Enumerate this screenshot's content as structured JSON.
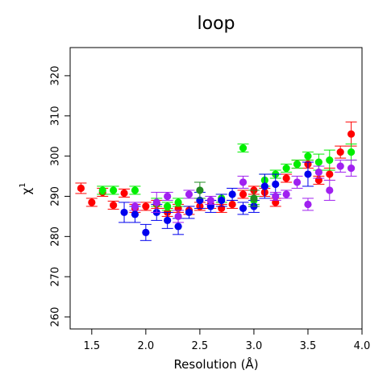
{
  "chart_data": {
    "type": "scatter",
    "title": "loop",
    "xlabel": "Resolution (Å)",
    "ylabel": "χ",
    "ylabel_superscript": "1",
    "xlim": [
      1.3,
      4.0
    ],
    "ylim": [
      257,
      327
    ],
    "xticks": [
      1.5,
      2.0,
      2.5,
      3.0,
      3.5,
      4.0
    ],
    "xtick_labels": [
      "1.5",
      "2.0",
      "2.5",
      "3.0",
      "3.5",
      "4.0"
    ],
    "yticks": [
      260,
      270,
      280,
      290,
      300,
      310,
      320
    ],
    "ytick_labels": [
      "260",
      "270",
      "280",
      "290",
      "300",
      "310",
      "320"
    ],
    "grid": false,
    "series": [
      {
        "color": "#ff0000",
        "points": [
          {
            "x": 1.4,
            "y": 292.0,
            "err": 1.3
          },
          {
            "x": 1.5,
            "y": 288.5,
            "err": 1.0
          },
          {
            "x": 1.6,
            "y": 291.0,
            "err": 1.0
          },
          {
            "x": 1.7,
            "y": 287.8,
            "err": 1.0
          },
          {
            "x": 1.8,
            "y": 290.8,
            "err": 1.0
          },
          {
            "x": 1.9,
            "y": 287.0,
            "err": 1.0
          },
          {
            "x": 2.0,
            "y": 287.5,
            "err": 1.0
          },
          {
            "x": 2.1,
            "y": 288.0,
            "err": 1.0
          },
          {
            "x": 2.2,
            "y": 286.0,
            "err": 1.0
          },
          {
            "x": 2.3,
            "y": 287.0,
            "err": 1.0
          },
          {
            "x": 2.4,
            "y": 286.5,
            "err": 1.0
          },
          {
            "x": 2.5,
            "y": 287.5,
            "err": 1.0
          },
          {
            "x": 2.6,
            "y": 288.0,
            "err": 1.0
          },
          {
            "x": 2.7,
            "y": 287.0,
            "err": 1.0
          },
          {
            "x": 2.8,
            "y": 288.0,
            "err": 1.0
          },
          {
            "x": 2.9,
            "y": 290.5,
            "err": 1.0
          },
          {
            "x": 3.0,
            "y": 291.5,
            "err": 1.0
          },
          {
            "x": 3.1,
            "y": 291.0,
            "err": 1.0
          },
          {
            "x": 3.2,
            "y": 288.5,
            "err": 1.0
          },
          {
            "x": 3.3,
            "y": 294.5,
            "err": 1.0
          },
          {
            "x": 3.4,
            "y": 298.0,
            "err": 1.0
          },
          {
            "x": 3.5,
            "y": 298.0,
            "err": 1.0
          },
          {
            "x": 3.6,
            "y": 294.0,
            "err": 1.0
          },
          {
            "x": 3.7,
            "y": 295.5,
            "err": 1.5
          },
          {
            "x": 3.8,
            "y": 301.0,
            "err": 1.5
          },
          {
            "x": 3.9,
            "y": 305.5,
            "err": 3.0
          }
        ]
      },
      {
        "color": "#00ee00",
        "points": [
          {
            "x": 1.6,
            "y": 291.5,
            "err": 1.0
          },
          {
            "x": 1.7,
            "y": 291.5,
            "err": 1.0
          },
          {
            "x": 1.9,
            "y": 291.5,
            "err": 1.0
          },
          {
            "x": 2.1,
            "y": 288.5,
            "err": 1.0
          },
          {
            "x": 2.2,
            "y": 287.5,
            "err": 1.0
          },
          {
            "x": 2.3,
            "y": 288.5,
            "err": 1.0
          },
          {
            "x": 2.7,
            "y": 289.5,
            "err": 1.0
          },
          {
            "x": 2.9,
            "y": 302.0,
            "err": 1.0
          },
          {
            "x": 3.0,
            "y": 289.0,
            "err": 1.0
          },
          {
            "x": 3.1,
            "y": 294.0,
            "err": 1.5
          },
          {
            "x": 3.2,
            "y": 295.5,
            "err": 1.0
          },
          {
            "x": 3.3,
            "y": 297.0,
            "err": 1.0
          },
          {
            "x": 3.4,
            "y": 298.0,
            "err": 1.0
          },
          {
            "x": 3.5,
            "y": 300.0,
            "err": 1.0
          },
          {
            "x": 3.6,
            "y": 298.5,
            "err": 2.0
          },
          {
            "x": 3.7,
            "y": 299.0,
            "err": 2.5
          },
          {
            "x": 3.9,
            "y": 301.0,
            "err": 2.0
          }
        ]
      },
      {
        "color": "#0000ee",
        "points": [
          {
            "x": 1.8,
            "y": 286.0,
            "err": 2.5
          },
          {
            "x": 1.9,
            "y": 285.5,
            "err": 2.0
          },
          {
            "x": 2.0,
            "y": 281.0,
            "err": 2.0
          },
          {
            "x": 2.1,
            "y": 286.0,
            "err": 2.0
          },
          {
            "x": 2.2,
            "y": 284.0,
            "err": 2.0
          },
          {
            "x": 2.3,
            "y": 282.5,
            "err": 2.0
          },
          {
            "x": 2.4,
            "y": 286.0,
            "err": 1.5
          },
          {
            "x": 2.5,
            "y": 289.0,
            "err": 2.0
          },
          {
            "x": 2.6,
            "y": 287.5,
            "err": 1.5
          },
          {
            "x": 2.7,
            "y": 289.0,
            "err": 1.5
          },
          {
            "x": 2.8,
            "y": 290.5,
            "err": 1.5
          },
          {
            "x": 2.9,
            "y": 287.0,
            "err": 1.5
          },
          {
            "x": 3.0,
            "y": 287.5,
            "err": 1.5
          },
          {
            "x": 3.1,
            "y": 292.5,
            "err": 3.0
          },
          {
            "x": 3.2,
            "y": 293.0,
            "err": 2.5
          },
          {
            "x": 3.5,
            "y": 295.5,
            "err": 3.0
          }
        ]
      },
      {
        "color": "#a020f0",
        "points": [
          {
            "x": 1.9,
            "y": 287.5,
            "err": 1.0
          },
          {
            "x": 2.1,
            "y": 288.5,
            "err": 2.5
          },
          {
            "x": 2.2,
            "y": 290.0,
            "err": 1.0
          },
          {
            "x": 2.3,
            "y": 285.0,
            "err": 1.5
          },
          {
            "x": 2.4,
            "y": 290.5,
            "err": 1.0
          },
          {
            "x": 2.6,
            "y": 289.0,
            "err": 1.0
          },
          {
            "x": 2.9,
            "y": 293.5,
            "err": 1.5
          },
          {
            "x": 3.2,
            "y": 290.0,
            "err": 1.0
          },
          {
            "x": 3.3,
            "y": 290.5,
            "err": 1.0
          },
          {
            "x": 3.4,
            "y": 293.5,
            "err": 1.5
          },
          {
            "x": 3.5,
            "y": 288.0,
            "err": 1.5
          },
          {
            "x": 3.6,
            "y": 296.0,
            "err": 1.5
          },
          {
            "x": 3.7,
            "y": 291.5,
            "err": 2.5
          },
          {
            "x": 3.8,
            "y": 297.5,
            "err": 1.5
          },
          {
            "x": 3.9,
            "y": 297.0,
            "err": 2.0
          }
        ]
      },
      {
        "color": "#228b22",
        "points": [
          {
            "x": 2.5,
            "y": 291.5,
            "err": 2.0
          },
          {
            "x": 3.0,
            "y": 289.5,
            "err": 2.0
          }
        ]
      }
    ]
  }
}
